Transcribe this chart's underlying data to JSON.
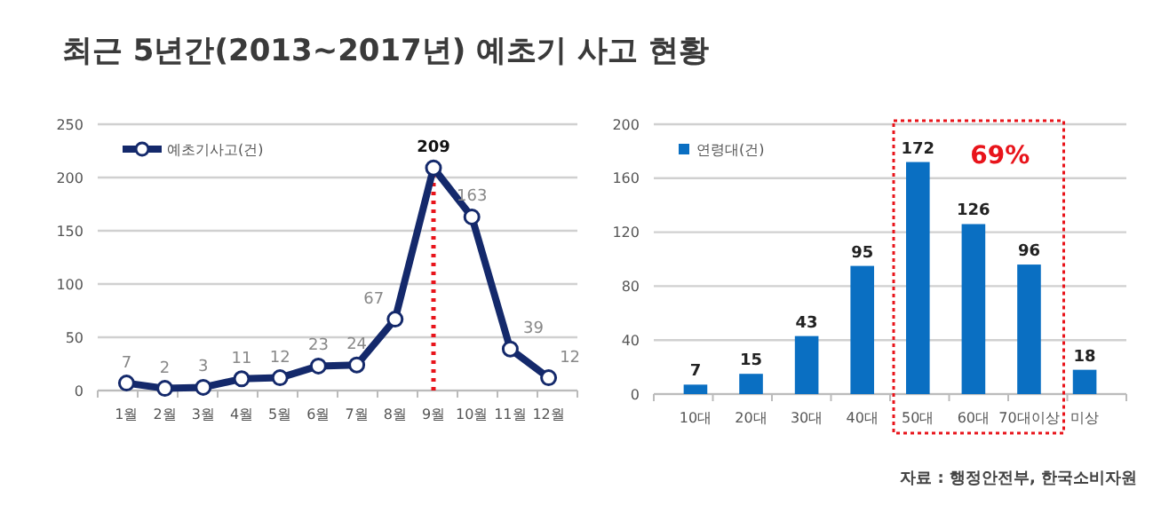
{
  "chart_data": [
    {
      "type": "line",
      "title": "최근 5년간(2013~2017년) 예초기 사고 현황",
      "categories": [
        "1월",
        "2월",
        "3월",
        "4월",
        "5월",
        "6월",
        "7월",
        "8월",
        "9월",
        "10월",
        "11월",
        "12월"
      ],
      "series": [
        {
          "name": "예초기사고(건)",
          "color": "#14296b",
          "values": [
            7,
            2,
            3,
            11,
            12,
            23,
            24,
            67,
            209,
            163,
            39,
            12
          ]
        }
      ],
      "ylim": [
        0,
        250
      ],
      "yticks": [
        0,
        50,
        100,
        150,
        200,
        250
      ],
      "grid": "y",
      "legend": "top left",
      "marker": "circle",
      "data_labels": true,
      "ref_lines": [
        {
          "axis": "x",
          "value": "9월",
          "color": "#e8141b",
          "line_style": "dotted"
        }
      ]
    },
    {
      "type": "bar",
      "categories": [
        "10대",
        "20대",
        "30대",
        "40대",
        "50대",
        "60대",
        "70대이상",
        "미상"
      ],
      "series": [
        {
          "name": "연령대(건)",
          "color": "#0a6fc2",
          "values": [
            7,
            15,
            43,
            95,
            172,
            126,
            96,
            18
          ]
        }
      ],
      "ylim": [
        0,
        200
      ],
      "yticks": [
        0,
        40,
        80,
        120,
        160,
        200
      ],
      "grid": "y",
      "legend": "top left",
      "data_labels": true,
      "annotations": [
        "69%",
        "자료 : 행정안전부, 한국소비자원"
      ]
    }
  ]
}
